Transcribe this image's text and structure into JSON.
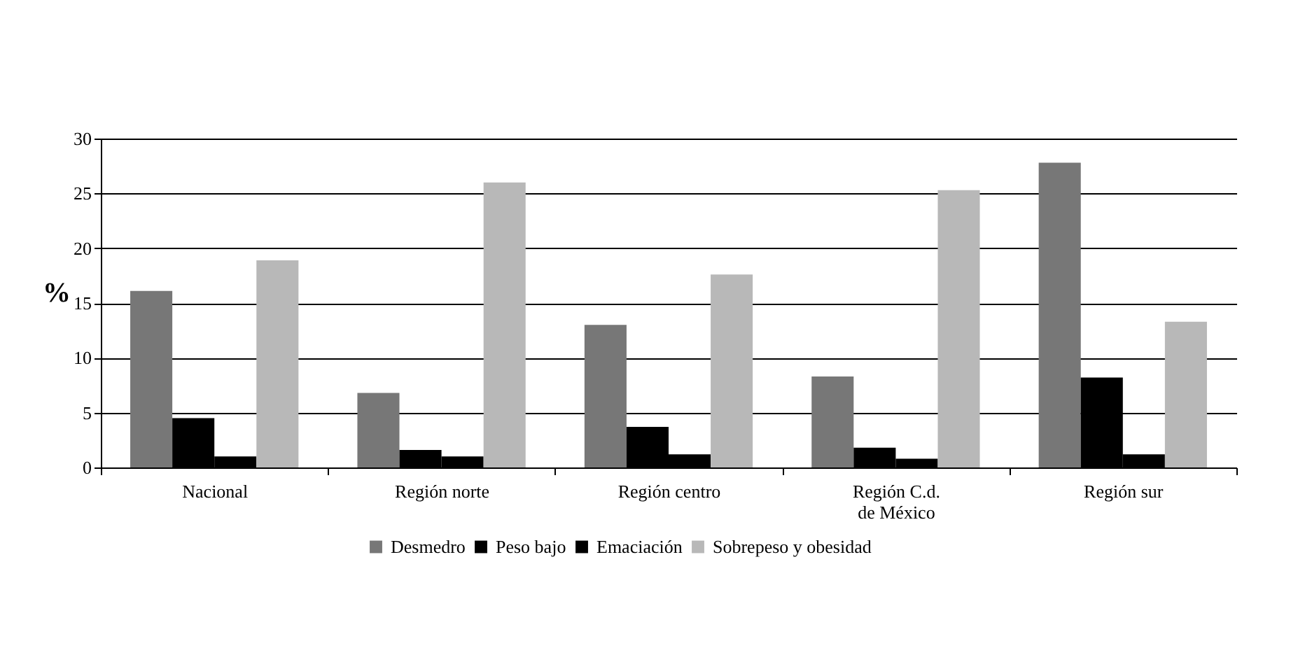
{
  "chart_data": {
    "type": "bar",
    "ylabel": "%",
    "categories": [
      "Nacional",
      "Región norte",
      "Región centro",
      "Región C.d.\nde México",
      "Región sur"
    ],
    "series": [
      {
        "name": "Desmedro",
        "color": "#777777",
        "values": [
          16.1,
          6.8,
          13.0,
          8.3,
          27.8
        ]
      },
      {
        "name": "Peso bajo",
        "color": "#000000",
        "values": [
          4.5,
          1.6,
          3.7,
          1.8,
          8.2
        ]
      },
      {
        "name": "Emaciación",
        "color": "#000000",
        "values": [
          1.0,
          1.0,
          1.2,
          0.8,
          1.2
        ]
      },
      {
        "name": "Sobrepeso y obesidad",
        "color": "#b8b8b8",
        "values": [
          18.9,
          26.0,
          17.6,
          25.3,
          13.3
        ]
      }
    ],
    "ylim": [
      0,
      30
    ],
    "yticks": [
      0,
      5,
      10,
      15,
      20,
      25,
      30
    ],
    "grid": "y",
    "legend": "bottom"
  }
}
